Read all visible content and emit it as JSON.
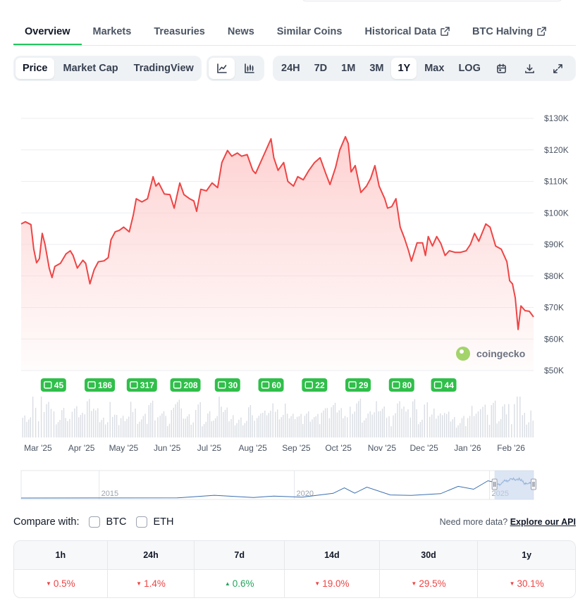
{
  "tabs": [
    {
      "label": "Overview",
      "active": true,
      "external": false
    },
    {
      "label": "Markets",
      "active": false,
      "external": false
    },
    {
      "label": "Treasuries",
      "active": false,
      "external": false
    },
    {
      "label": "News",
      "active": false,
      "external": false
    },
    {
      "label": "Similar Coins",
      "active": false,
      "external": false
    },
    {
      "label": "Historical Data",
      "active": false,
      "external": true
    },
    {
      "label": "BTC Halving",
      "active": false,
      "external": true
    }
  ],
  "metric_tabs": [
    {
      "label": "Price",
      "active": true
    },
    {
      "label": "Market Cap",
      "active": false
    },
    {
      "label": "TradingView",
      "active": false
    }
  ],
  "chart_type_buttons": [
    {
      "icon": "line-chart-icon",
      "active": true
    },
    {
      "icon": "candlestick-icon",
      "active": false
    }
  ],
  "range_buttons": [
    {
      "label": "24H",
      "active": false
    },
    {
      "label": "7D",
      "active": false
    },
    {
      "label": "1M",
      "active": false
    },
    {
      "label": "3M",
      "active": false
    },
    {
      "label": "1Y",
      "active": true
    },
    {
      "label": "Max",
      "active": false
    },
    {
      "label": "LOG",
      "active": false
    }
  ],
  "tool_icons": [
    "calendar-icon",
    "download-icon",
    "fullscreen-icon"
  ],
  "chart_data": {
    "type": "area",
    "title": "",
    "xlabel": "",
    "ylabel": "",
    "y_unit": "USD",
    "ylim": [
      50000,
      130000
    ],
    "y_ticks": [
      "$130K",
      "$120K",
      "$110K",
      "$100K",
      "$90K",
      "$80K",
      "$70K",
      "$60K",
      "$50K"
    ],
    "y_tick_values": [
      130000,
      120000,
      110000,
      100000,
      90000,
      80000,
      70000,
      60000,
      50000
    ],
    "x_ticks": [
      "Mar '25",
      "Apr '25",
      "May '25",
      "Jun '25",
      "Jul '25",
      "Aug '25",
      "Sep '25",
      "Oct '25",
      "Nov '25",
      "Dec '25",
      "Jan '26",
      "Feb '26"
    ],
    "x_tick_dates": [
      "2025-03-01",
      "2025-04-01",
      "2025-05-01",
      "2025-06-01",
      "2025-07-01",
      "2025-08-01",
      "2025-09-01",
      "2025-10-01",
      "2025-11-01",
      "2025-12-01",
      "2026-01-01",
      "2026-02-01"
    ],
    "xlim": [
      "2025-02-17",
      "2026-02-17"
    ],
    "grid": true,
    "line_color": "#ef4444",
    "fill_color": "#fecaca",
    "series": [
      {
        "points": [
          [
            "2025-02-17",
            96500
          ],
          [
            "2025-02-20",
            97200
          ],
          [
            "2025-02-24",
            96300
          ],
          [
            "2025-02-26",
            88500
          ],
          [
            "2025-02-28",
            84200
          ],
          [
            "2025-03-02",
            85500
          ],
          [
            "2025-03-04",
            93500
          ],
          [
            "2025-03-06",
            90000
          ],
          [
            "2025-03-09",
            82500
          ],
          [
            "2025-03-11",
            79500
          ],
          [
            "2025-03-13",
            83000
          ],
          [
            "2025-03-17",
            84000
          ],
          [
            "2025-03-21",
            87000
          ],
          [
            "2025-03-24",
            88000
          ],
          [
            "2025-03-26",
            86500
          ],
          [
            "2025-03-29",
            82500
          ],
          [
            "2025-04-02",
            85000
          ],
          [
            "2025-04-04",
            84000
          ],
          [
            "2025-04-07",
            77500
          ],
          [
            "2025-04-10",
            82000
          ],
          [
            "2025-04-13",
            84500
          ],
          [
            "2025-04-17",
            84800
          ],
          [
            "2025-04-20",
            85800
          ],
          [
            "2025-04-22",
            91500
          ],
          [
            "2025-04-25",
            94000
          ],
          [
            "2025-04-28",
            94500
          ],
          [
            "2025-05-01",
            95500
          ],
          [
            "2025-05-05",
            94000
          ],
          [
            "2025-05-08",
            99500
          ],
          [
            "2025-05-10",
            104500
          ],
          [
            "2025-05-14",
            103500
          ],
          [
            "2025-05-18",
            104500
          ],
          [
            "2025-05-22",
            111500
          ],
          [
            "2025-05-24",
            108500
          ],
          [
            "2025-05-26",
            109500
          ],
          [
            "2025-05-30",
            106000
          ],
          [
            "2025-06-03",
            105800
          ],
          [
            "2025-06-06",
            101500
          ],
          [
            "2025-06-10",
            109500
          ],
          [
            "2025-06-13",
            105800
          ],
          [
            "2025-06-17",
            104500
          ],
          [
            "2025-06-20",
            103800
          ],
          [
            "2025-06-22",
            100500
          ],
          [
            "2025-06-25",
            107500
          ],
          [
            "2025-06-29",
            107000
          ],
          [
            "2025-07-03",
            109500
          ],
          [
            "2025-07-07",
            108000
          ],
          [
            "2025-07-10",
            116000
          ],
          [
            "2025-07-14",
            119800
          ],
          [
            "2025-07-17",
            118000
          ],
          [
            "2025-07-21",
            119000
          ],
          [
            "2025-07-24",
            118000
          ],
          [
            "2025-07-28",
            118500
          ],
          [
            "2025-08-01",
            113500
          ],
          [
            "2025-08-03",
            112500
          ],
          [
            "2025-08-07",
            116500
          ],
          [
            "2025-08-10",
            119500
          ],
          [
            "2025-08-14",
            123500
          ],
          [
            "2025-08-16",
            117500
          ],
          [
            "2025-08-19",
            113500
          ],
          [
            "2025-08-23",
            116000
          ],
          [
            "2025-08-26",
            110000
          ],
          [
            "2025-08-30",
            108500
          ],
          [
            "2025-09-02",
            111500
          ],
          [
            "2025-09-06",
            110500
          ],
          [
            "2025-09-10",
            113500
          ],
          [
            "2025-09-14",
            116000
          ],
          [
            "2025-09-18",
            117500
          ],
          [
            "2025-09-22",
            112500
          ],
          [
            "2025-09-25",
            109000
          ],
          [
            "2025-09-29",
            114500
          ],
          [
            "2025-10-02",
            120000
          ],
          [
            "2025-10-06",
            124200
          ],
          [
            "2025-10-08",
            122000
          ],
          [
            "2025-10-10",
            113000
          ],
          [
            "2025-10-13",
            115000
          ],
          [
            "2025-10-17",
            106500
          ],
          [
            "2025-10-21",
            108500
          ],
          [
            "2025-10-24",
            111000
          ],
          [
            "2025-10-27",
            115000
          ],
          [
            "2025-10-30",
            108500
          ],
          [
            "2025-11-03",
            104500
          ],
          [
            "2025-11-05",
            101500
          ],
          [
            "2025-11-08",
            102000
          ],
          [
            "2025-11-11",
            104500
          ],
          [
            "2025-11-14",
            95500
          ],
          [
            "2025-11-17",
            92000
          ],
          [
            "2025-11-20",
            88000
          ],
          [
            "2025-11-22",
            84700
          ],
          [
            "2025-11-26",
            90500
          ],
          [
            "2025-11-30",
            90500
          ],
          [
            "2025-12-02",
            86500
          ],
          [
            "2025-12-04",
            92500
          ],
          [
            "2025-12-07",
            89500
          ],
          [
            "2025-12-10",
            92500
          ],
          [
            "2025-12-13",
            90300
          ],
          [
            "2025-12-16",
            86500
          ],
          [
            "2025-12-19",
            88000
          ],
          [
            "2025-12-23",
            87500
          ],
          [
            "2025-12-27",
            87500
          ],
          [
            "2025-12-31",
            88000
          ],
          [
            "2026-01-03",
            90000
          ],
          [
            "2026-01-06",
            93500
          ],
          [
            "2026-01-09",
            91000
          ],
          [
            "2026-01-14",
            96500
          ],
          [
            "2026-01-17",
            95500
          ],
          [
            "2026-01-21",
            89500
          ],
          [
            "2026-01-25",
            88500
          ],
          [
            "2026-01-29",
            84500
          ],
          [
            "2026-01-31",
            78500
          ],
          [
            "2026-02-02",
            77500
          ],
          [
            "2026-02-04",
            73000
          ],
          [
            "2026-02-06",
            63000
          ],
          [
            "2026-02-08",
            70500
          ],
          [
            "2026-02-11",
            69000
          ],
          [
            "2026-02-14",
            68800
          ],
          [
            "2026-02-17",
            67000
          ]
        ]
      }
    ],
    "annotations": [
      {
        "label": "45",
        "date": "2025-03-12"
      },
      {
        "label": "186",
        "date": "2025-04-14"
      },
      {
        "label": "317",
        "date": "2025-05-14"
      },
      {
        "label": "208",
        "date": "2025-06-14"
      },
      {
        "label": "30",
        "date": "2025-07-14"
      },
      {
        "label": "60",
        "date": "2025-08-14"
      },
      {
        "label": "22",
        "date": "2025-09-14"
      },
      {
        "label": "29",
        "date": "2025-10-15"
      },
      {
        "label": "80",
        "date": "2025-11-15"
      },
      {
        "label": "44",
        "date": "2025-12-15"
      }
    ],
    "watermark": "coingecko",
    "navigator": {
      "labels": [
        "2015",
        "2020",
        "2025"
      ],
      "label_dates": [
        "2015-01-01",
        "2020-01-01",
        "2025-01-01"
      ],
      "selected_range": [
        "2025-02-17",
        "2026-02-17"
      ]
    }
  },
  "compare": {
    "label": "Compare with:",
    "options": [
      "BTC",
      "ETH"
    ],
    "api_text": "Need more data?",
    "api_link": "Explore our API"
  },
  "price_changes": [
    {
      "period": "1h",
      "value": "0.5%",
      "direction": "down"
    },
    {
      "period": "24h",
      "value": "1.4%",
      "direction": "down"
    },
    {
      "period": "7d",
      "value": "0.6%",
      "direction": "up"
    },
    {
      "period": "14d",
      "value": "19.0%",
      "direction": "down"
    },
    {
      "period": "30d",
      "value": "29.5%",
      "direction": "down"
    },
    {
      "period": "1y",
      "value": "30.1%",
      "direction": "down"
    }
  ]
}
